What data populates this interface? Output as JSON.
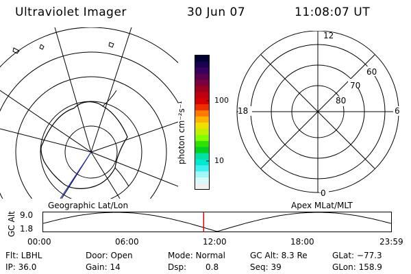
{
  "header": {
    "title": "Ultraviolet Imager",
    "date": "30 Jun 07",
    "time": "11:08:07 UT"
  },
  "colorbar": {
    "unit_label": "photon cm⁻²s⁻¹",
    "tick_100": "100",
    "tick_10": "10",
    "colors": [
      "#000033",
      "#1a0050",
      "#3a0060",
      "#5a0050",
      "#7a0040",
      "#a00020",
      "#c00010",
      "#d80000",
      "#ee3000",
      "#ff7a00",
      "#ffb000",
      "#f0e000",
      "#c0f000",
      "#80ff00",
      "#30e000",
      "#00d020",
      "#00e0a0",
      "#00e8d0",
      "#40f0f0",
      "#a0f8f8",
      "#d8fafa",
      "#f0f0f0"
    ]
  },
  "polar": {
    "label_top": "12",
    "label_right": "6",
    "label_left": "18",
    "label_bottom": "0",
    "ring_60": "60",
    "ring_70": "70",
    "ring_80": "80"
  },
  "map_labels": {
    "left": "Geographic Lat/Lon",
    "right": "Apex MLat/MLT"
  },
  "timeline": {
    "axis_label": "GC Alt",
    "y_top": "9.0",
    "y_bottom": "1.8",
    "ticks": [
      "00:00",
      "06:00",
      "12:00",
      "18:00",
      "23:59"
    ],
    "current_fraction": 0.4612
  },
  "footer": {
    "flt": "Flt: LBHL",
    "door": "Door: Open",
    "mode": "Mode: Normal",
    "gc_alt": "GC Alt: 8.3 Re",
    "glat": "GLat: −77.3",
    "ip": "IP: 36.0",
    "gain": "Gain: 14",
    "dsp_label": "Dsp:",
    "dsp_value": "0.8",
    "seq": "Seq: 39",
    "glon": "GLon: 158.9"
  }
}
